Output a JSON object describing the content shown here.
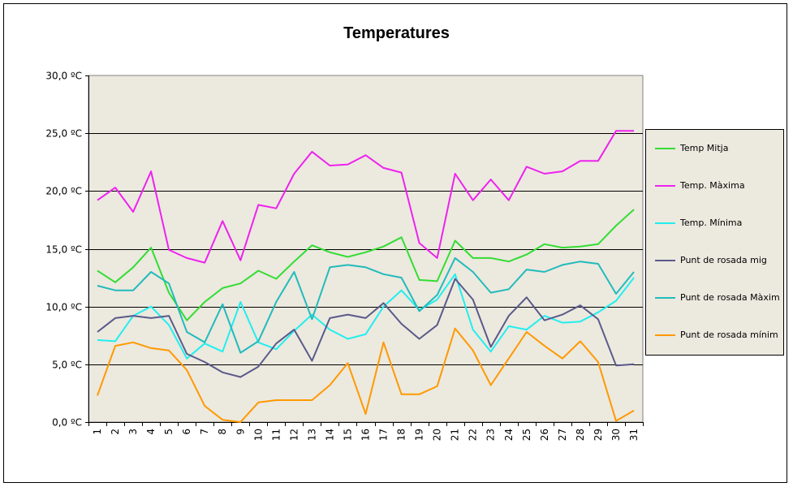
{
  "chart_data": {
    "type": "line",
    "title": "Temperatures",
    "ylim": [
      0,
      30
    ],
    "yticks": [
      "0,0 ºC",
      "5,0 ºC",
      "10,0 ºC",
      "15,0 ºC",
      "20,0 ºC",
      "25,0 ºC",
      "30,0 ºC"
    ],
    "categories": [
      "1",
      "2",
      "3",
      "4",
      "5",
      "6",
      "7",
      "8",
      "9",
      "10",
      "11",
      "12",
      "13",
      "14",
      "15",
      "16",
      "17",
      "18",
      "19",
      "20",
      "21",
      "22",
      "23",
      "24",
      "25",
      "26",
      "27",
      "28",
      "29",
      "30",
      "31"
    ],
    "grid": "horizontal",
    "legend_position": "right",
    "plot_background": "#ece9df",
    "series": [
      {
        "name": "Temp Mitja",
        "color": "#33dd33",
        "values": [
          13.1,
          12.1,
          13.4,
          15.1,
          11.2,
          8.8,
          10.4,
          11.6,
          12.0,
          13.1,
          12.4,
          13.9,
          15.3,
          14.7,
          14.3,
          14.7,
          15.2,
          16.0,
          12.3,
          12.2,
          15.7,
          14.2,
          14.2,
          13.9,
          14.5,
          15.4,
          15.1,
          15.2,
          15.4,
          17.0,
          18.4
        ]
      },
      {
        "name": "Temp. Màxima",
        "color": "#ee22ee",
        "values": [
          19.2,
          20.3,
          18.2,
          21.7,
          14.9,
          14.2,
          13.8,
          17.4,
          14.0,
          18.8,
          18.5,
          21.5,
          23.4,
          22.2,
          22.3,
          23.1,
          22.0,
          21.6,
          15.5,
          14.2,
          21.5,
          19.2,
          21.0,
          19.2,
          22.1,
          21.5,
          21.7,
          22.6,
          22.6,
          25.2,
          25.2
        ]
      },
      {
        "name": "Temp. Mínima",
        "color": "#22eeee",
        "values": [
          7.1,
          7.0,
          9.2,
          10.0,
          8.4,
          5.5,
          6.8,
          6.1,
          10.4,
          6.9,
          6.3,
          7.9,
          9.3,
          8.0,
          7.2,
          7.6,
          10.0,
          11.4,
          9.7,
          10.6,
          12.8,
          8.0,
          6.1,
          8.3,
          8.0,
          9.2,
          8.6,
          8.7,
          9.5,
          10.5,
          12.5
        ]
      },
      {
        "name": "Punt de rosada mig",
        "color": "#5a5a8a",
        "values": [
          7.8,
          9.0,
          9.2,
          9.0,
          9.2,
          5.9,
          5.2,
          4.3,
          3.9,
          4.8,
          6.8,
          8.0,
          5.3,
          9.0,
          9.3,
          9.0,
          10.3,
          8.5,
          7.2,
          8.4,
          12.4,
          10.6,
          6.5,
          9.2,
          10.8,
          8.8,
          9.3,
          10.1,
          8.9,
          4.9,
          5.0
        ]
      },
      {
        "name": "Punt de rosada Màxim",
        "color": "#22bbbb",
        "values": [
          11.8,
          11.4,
          11.4,
          13.0,
          12.0,
          7.8,
          6.9,
          10.2,
          6.0,
          7.0,
          10.4,
          13.0,
          8.9,
          13.4,
          13.6,
          13.4,
          12.8,
          12.5,
          9.6,
          11.0,
          14.2,
          13.0,
          11.2,
          11.5,
          13.2,
          13.0,
          13.6,
          13.9,
          13.7,
          11.1,
          13.0
        ]
      },
      {
        "name": "Punt de rosada mínim",
        "color": "#ff9900",
        "values": [
          2.3,
          6.6,
          6.9,
          6.4,
          6.2,
          4.5,
          1.4,
          0.2,
          0.0,
          1.7,
          1.9,
          1.9,
          1.9,
          3.2,
          5.1,
          0.7,
          6.9,
          2.4,
          2.4,
          3.1,
          8.1,
          6.2,
          3.2,
          5.5,
          7.8,
          6.6,
          5.5,
          7.0,
          5.2,
          0.1,
          1.0
        ]
      }
    ]
  }
}
